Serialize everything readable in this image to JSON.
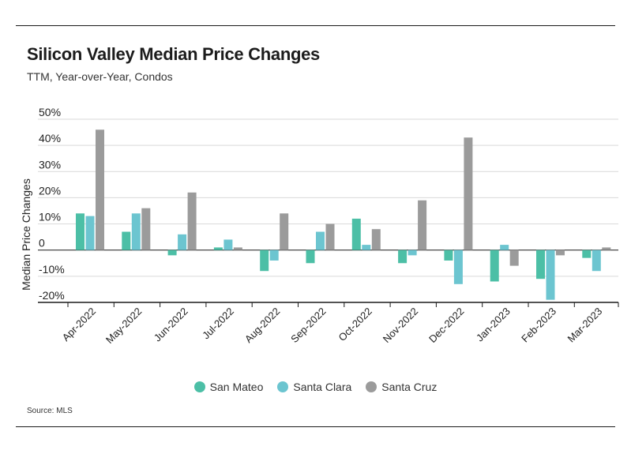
{
  "header": {
    "title": "Silicon Valley Median Price Changes",
    "subtitle": "TTM, Year-over-Year, Condos"
  },
  "footer": {
    "source": "Source: MLS"
  },
  "chart_data": {
    "type": "bar",
    "title": "Silicon Valley Median Price Changes",
    "subtitle": "TTM, Year-over-Year, Condos",
    "xlabel": "",
    "ylabel": "Median Price Changes",
    "ylim": [
      -20,
      50
    ],
    "yticks": [
      -20,
      -10,
      0,
      10,
      20,
      30,
      40,
      50
    ],
    "ytick_labels": [
      "-20%",
      "-10%",
      "0",
      "10%",
      "20%",
      "30%",
      "40%",
      "50%"
    ],
    "grid": true,
    "legend_position": "bottom",
    "categories": [
      "Apr-2022",
      "May-2022",
      "Jun-2022",
      "Jul-2022",
      "Aug-2022",
      "Sep-2022",
      "Oct-2022",
      "Nov-2022",
      "Dec-2022",
      "Jan-2023",
      "Feb-2023",
      "Mar-2023"
    ],
    "series": [
      {
        "name": "San Mateo",
        "color": "#4cbfa6",
        "values": [
          14,
          7,
          -2,
          1,
          -8,
          -5,
          12,
          -5,
          -4,
          -12,
          -11,
          -3
        ]
      },
      {
        "name": "Santa Clara",
        "color": "#6cc5d0",
        "values": [
          13,
          14,
          6,
          4,
          -4,
          7,
          2,
          -2,
          -13,
          2,
          -19,
          -8
        ]
      },
      {
        "name": "Santa Cruz",
        "color": "#9b9b9b",
        "values": [
          46,
          16,
          22,
          1,
          14,
          10,
          8,
          19,
          43,
          -6,
          -2,
          1
        ]
      }
    ]
  }
}
